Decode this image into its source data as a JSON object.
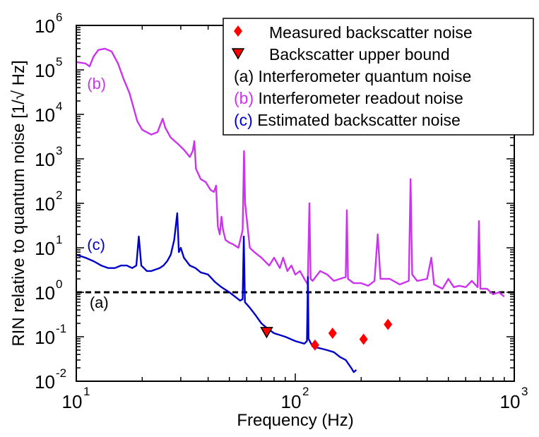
{
  "chart_data": {
    "type": "line",
    "xlabel": "Frequency (Hz)",
    "ylabel": "RIN relative to quantum noise [1/√ Hz]",
    "xscale": "log",
    "yscale": "log",
    "xlim": [
      10,
      1000
    ],
    "ylim": [
      0.01,
      1000000
    ],
    "x_ticks": [
      {
        "value": 10,
        "base": "10",
        "exp": "1"
      },
      {
        "value": 100,
        "base": "10",
        "exp": "2"
      },
      {
        "value": 1000,
        "base": "10",
        "exp": "3"
      }
    ],
    "y_ticks": [
      {
        "value": 0.01,
        "base": "10",
        "exp": "-2"
      },
      {
        "value": 0.1,
        "base": "10",
        "exp": "-1"
      },
      {
        "value": 1,
        "base": "10",
        "exp": "0"
      },
      {
        "value": 10,
        "base": "10",
        "exp": "1"
      },
      {
        "value": 100,
        "base": "10",
        "exp": "2"
      },
      {
        "value": 1000,
        "base": "10",
        "exp": "3"
      },
      {
        "value": 10000,
        "base": "10",
        "exp": "4"
      },
      {
        "value": 100000,
        "base": "10",
        "exp": "5"
      },
      {
        "value": 1000000,
        "base": "10",
        "exp": "6"
      }
    ],
    "legend_position": "top-right",
    "series": [
      {
        "key": "measured",
        "name": "Measured backscatter noise",
        "kind": "scatter",
        "marker": "diamond",
        "color": "#ff0000",
        "points": [
          [
            123,
            0.065
          ],
          [
            148,
            0.12
          ],
          [
            205,
            0.088
          ],
          [
            265,
            0.19
          ]
        ]
      },
      {
        "key": "upper",
        "name": "Backscatter upper bound",
        "kind": "scatter",
        "marker": "triangle-down",
        "color": "#ff0000",
        "points": [
          [
            74,
            0.13
          ]
        ]
      },
      {
        "key": "quantum",
        "name": "(a) Interferometer quantum noise",
        "kind": "line",
        "dashed": true,
        "color": "#000000",
        "points": [
          [
            10,
            1
          ],
          [
            1000,
            1
          ]
        ]
      },
      {
        "key": "readout",
        "name": "(b) Interferometer readout noise",
        "kind": "line",
        "color": "#cc33ee",
        "points": [
          [
            10,
            150000
          ],
          [
            11,
            140000
          ],
          [
            11.5,
            120000
          ],
          [
            12,
            200000
          ],
          [
            12.6,
            280000
          ],
          [
            13.5,
            300000
          ],
          [
            14.5,
            260000
          ],
          [
            15.5,
            140000
          ],
          [
            16.5,
            60000
          ],
          [
            17.5,
            30000
          ],
          [
            19,
            7000
          ],
          [
            20,
            4500
          ],
          [
            22,
            3500
          ],
          [
            23.5,
            4000
          ],
          [
            24.8,
            8000
          ],
          [
            25.5,
            5000
          ],
          [
            27,
            3000
          ],
          [
            29,
            2200
          ],
          [
            31,
            1600
          ],
          [
            33,
            1100
          ],
          [
            34,
            1500
          ],
          [
            34.6,
            2500
          ],
          [
            35.2,
            600
          ],
          [
            37,
            350
          ],
          [
            39,
            300
          ],
          [
            41,
            200
          ],
          [
            42.5,
            180
          ],
          [
            43.5,
            250
          ],
          [
            44.3,
            30
          ],
          [
            45.2,
            20
          ],
          [
            46,
            50
          ],
          [
            46.8,
            25
          ],
          [
            48,
            15
          ],
          [
            50,
            13
          ],
          [
            52,
            12
          ],
          [
            55,
            10
          ],
          [
            57.5,
            25
          ],
          [
            58.3,
            1500
          ],
          [
            59,
            100
          ],
          [
            62,
            10
          ],
          [
            65,
            8
          ],
          [
            70,
            6
          ],
          [
            76,
            4
          ],
          [
            80,
            6
          ],
          [
            85,
            3.5
          ],
          [
            88,
            6
          ],
          [
            92,
            3
          ],
          [
            96,
            4
          ],
          [
            100,
            2.5
          ],
          [
            105,
            3
          ],
          [
            110,
            2
          ],
          [
            114,
            1.5
          ],
          [
            116,
            100
          ],
          [
            117.5,
            2
          ],
          [
            120,
            1.8
          ],
          [
            130,
            3
          ],
          [
            140,
            2.5
          ],
          [
            150,
            1.8
          ],
          [
            160,
            2
          ],
          [
            170,
            2.2
          ],
          [
            172,
            70
          ],
          [
            174,
            2
          ],
          [
            185,
            1.6
          ],
          [
            200,
            1.6
          ],
          [
            215,
            1.4
          ],
          [
            230,
            1.8
          ],
          [
            238,
            20
          ],
          [
            245,
            2
          ],
          [
            270,
            2
          ],
          [
            300,
            1.5
          ],
          [
            330,
            1.8
          ],
          [
            336,
            350
          ],
          [
            342,
            2.5
          ],
          [
            360,
            1.8
          ],
          [
            400,
            2
          ],
          [
            418,
            6
          ],
          [
            430,
            1.5
          ],
          [
            470,
            1.2
          ],
          [
            500,
            2
          ],
          [
            530,
            1.3
          ],
          [
            560,
            1.4
          ],
          [
            600,
            1.3
          ],
          [
            640,
            1.8
          ],
          [
            680,
            1.3
          ],
          [
            690,
            40
          ],
          [
            700,
            1.2
          ],
          [
            750,
            1.2
          ],
          [
            800,
            0.9
          ],
          [
            850,
            1
          ],
          [
            900,
            0.8
          ]
        ]
      },
      {
        "key": "estimated",
        "name": "(c) Estimated backscatter noise",
        "kind": "line",
        "color": "#0000cc",
        "points": [
          [
            10,
            7
          ],
          [
            11,
            6
          ],
          [
            12,
            5
          ],
          [
            13,
            4
          ],
          [
            14,
            3.5
          ],
          [
            15,
            3.5
          ],
          [
            16,
            4
          ],
          [
            17,
            4
          ],
          [
            18,
            3.5
          ],
          [
            18.8,
            4
          ],
          [
            19.3,
            18
          ],
          [
            19.8,
            4
          ],
          [
            21,
            3
          ],
          [
            22,
            3
          ],
          [
            24,
            3.5
          ],
          [
            25,
            4
          ],
          [
            26,
            5
          ],
          [
            27,
            7
          ],
          [
            28,
            15
          ],
          [
            28.9,
            60
          ],
          [
            29.4,
            8
          ],
          [
            30,
            10
          ],
          [
            31,
            6
          ],
          [
            33,
            4
          ],
          [
            35,
            3.5
          ],
          [
            37,
            2.8
          ],
          [
            40,
            2.5
          ],
          [
            43,
            1.7
          ],
          [
            46,
            1.3
          ],
          [
            50,
            1
          ],
          [
            53,
            0.8
          ],
          [
            56,
            0.65
          ],
          [
            57.5,
            0.7
          ],
          [
            58.2,
            18
          ],
          [
            58.9,
            0.6
          ],
          [
            62,
            0.45
          ],
          [
            66,
            0.3
          ],
          [
            70,
            0.2
          ],
          [
            75,
            0.15
          ],
          [
            80,
            0.12
          ],
          [
            90,
            0.1
          ],
          [
            100,
            0.08
          ],
          [
            110,
            0.07
          ],
          [
            113,
            0.08
          ],
          [
            114.2,
            2.2
          ],
          [
            115,
            0.09
          ],
          [
            120,
            0.06
          ],
          [
            130,
            0.055
          ],
          [
            140,
            0.05
          ],
          [
            150,
            0.045
          ],
          [
            160,
            0.035
          ],
          [
            170,
            0.03
          ],
          [
            180,
            0.02
          ],
          [
            185,
            0.016
          ],
          [
            190,
            0.018
          ]
        ]
      }
    ],
    "annotations": [
      {
        "text": "(a)",
        "x": 11.5,
        "y": 0.6,
        "color": "#000000"
      },
      {
        "text": "(b)",
        "x": 11.2,
        "y": 50000,
        "color": "#cc33ee"
      },
      {
        "text": "(c)",
        "x": 11.2,
        "y": 12,
        "color": "#0000cc"
      }
    ],
    "legend_entries": [
      {
        "marker": "diamond",
        "marker_color": "#ff0000",
        "prefix": "",
        "prefix_color": "#000000",
        "text": "Measured backscatter noise"
      },
      {
        "marker": "triangle-down",
        "marker_color": "#ff0000",
        "prefix": "",
        "prefix_color": "#000000",
        "text": "Backscatter upper bound"
      },
      {
        "marker": "",
        "marker_color": "",
        "prefix": "(a)",
        "prefix_color": "#000000",
        "text": "Interferometer quantum noise"
      },
      {
        "marker": "",
        "marker_color": "",
        "prefix": "(b)",
        "prefix_color": "#cc33ee",
        "text": "Interferometer readout noise"
      },
      {
        "marker": "",
        "marker_color": "",
        "prefix": "(c)",
        "prefix_color": "#0000cc",
        "text": "Estimated backscatter noise"
      }
    ]
  }
}
